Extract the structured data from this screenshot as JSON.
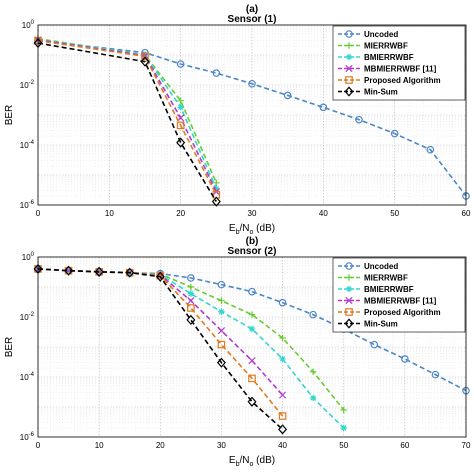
{
  "chart_data": [
    {
      "type": "line",
      "panel_label": "(a)",
      "title": "Sensor (1)",
      "xlabel": "E_b/N_o (dB)",
      "ylabel": "BER",
      "yscale": "log",
      "xlim": [
        0,
        60
      ],
      "ylim": [
        1e-06,
        1
      ],
      "xticks": [
        "0",
        "10",
        "20",
        "30",
        "40",
        "50",
        "60"
      ],
      "yticks": [
        "10^0",
        "10^-2",
        "10^-4",
        "10^-6"
      ],
      "grid": true,
      "legend_position": "top-right",
      "series": [
        {
          "name": "Uncoded",
          "color": "#4a86c8",
          "marker": "circle",
          "x": [
            0,
            15,
            20,
            25,
            30,
            35,
            40,
            45,
            50,
            55,
            60
          ],
          "y": [
            0.3,
            0.12,
            0.05,
            0.025,
            0.011,
            0.0045,
            0.0018,
            0.0007,
            0.00024,
            7e-05,
            2e-06
          ]
        },
        {
          "name": "MIERRWBF",
          "color": "#66cc33",
          "marker": "plus",
          "x": [
            0,
            15,
            20,
            25
          ],
          "y": [
            0.35,
            0.1,
            0.003,
            5.5e-06
          ]
        },
        {
          "name": "BMIERRWBF",
          "color": "#33d6cc",
          "marker": "star",
          "x": [
            0,
            15,
            20,
            25
          ],
          "y": [
            0.33,
            0.1,
            0.0018,
            3.5e-06
          ]
        },
        {
          "name": "MBMIERRWBF [11]",
          "color": "#b03ad0",
          "marker": "x",
          "x": [
            0,
            15,
            20,
            25
          ],
          "y": [
            0.32,
            0.095,
            0.0008,
            2.8e-06
          ]
        },
        {
          "name": "Proposed Algorithm",
          "color": "#e07a20",
          "marker": "square",
          "x": [
            0,
            15,
            20,
            25
          ],
          "y": [
            0.3,
            0.09,
            0.00045,
            2.2e-06
          ]
        },
        {
          "name": "Min-Sum",
          "color": "#000000",
          "marker": "diamond",
          "x": [
            0,
            15,
            20,
            25
          ],
          "y": [
            0.25,
            0.06,
            0.00012,
            1.3e-06
          ]
        }
      ]
    },
    {
      "type": "line",
      "panel_label": "(b)",
      "title": "Sensor (2)",
      "xlabel": "E_b/N_o (dB)",
      "ylabel": "BER",
      "yscale": "log",
      "xlim": [
        0,
        70
      ],
      "ylim": [
        1e-06,
        1
      ],
      "xticks": [
        "0",
        "10",
        "20",
        "30",
        "40",
        "50",
        "60",
        "70"
      ],
      "yticks": [
        "10^0",
        "10^-2",
        "10^-4",
        "10^-6"
      ],
      "grid": true,
      "legend_position": "top-right",
      "series": [
        {
          "name": "Uncoded",
          "color": "#4a86c8",
          "marker": "circle",
          "x": [
            0,
            5,
            10,
            15,
            20,
            25,
            30,
            35,
            40,
            45,
            50,
            55,
            60,
            65,
            70
          ],
          "y": [
            0.4,
            0.35,
            0.33,
            0.3,
            0.28,
            0.2,
            0.12,
            0.07,
            0.03,
            0.012,
            0.004,
            0.0012,
            0.0004,
            0.00012,
            3.5e-05
          ]
        },
        {
          "name": "MIERRWBF",
          "color": "#66cc33",
          "marker": "plus",
          "x": [
            0,
            5,
            10,
            15,
            20,
            25,
            30,
            35,
            40,
            45,
            50
          ],
          "y": [
            0.4,
            0.35,
            0.32,
            0.3,
            0.27,
            0.1,
            0.035,
            0.012,
            0.002,
            0.00015,
            8e-06
          ]
        },
        {
          "name": "BMIERRWBF",
          "color": "#33d6cc",
          "marker": "star",
          "x": [
            0,
            5,
            10,
            15,
            20,
            25,
            30,
            35,
            40,
            45,
            50
          ],
          "y": [
            0.4,
            0.35,
            0.32,
            0.3,
            0.26,
            0.06,
            0.015,
            0.004,
            0.0004,
            2e-05,
            2e-06
          ]
        },
        {
          "name": "MBMIERRWBF [11]",
          "color": "#b03ad0",
          "marker": "x",
          "x": [
            0,
            5,
            10,
            15,
            20,
            25,
            30,
            35,
            40
          ],
          "y": [
            0.4,
            0.35,
            0.32,
            0.3,
            0.25,
            0.035,
            0.0035,
            0.00035,
            2.5e-05
          ]
        },
        {
          "name": "Proposed Algorithm",
          "color": "#e07a20",
          "marker": "square",
          "x": [
            0,
            5,
            10,
            15,
            20,
            25,
            30,
            35,
            40
          ],
          "y": [
            0.4,
            0.35,
            0.32,
            0.3,
            0.24,
            0.02,
            0.0012,
            9e-05,
            5e-06
          ]
        },
        {
          "name": "Min-Sum",
          "color": "#000000",
          "marker": "diamond",
          "x": [
            0,
            5,
            10,
            15,
            20,
            25,
            30,
            35,
            40
          ],
          "y": [
            0.4,
            0.35,
            0.32,
            0.3,
            0.22,
            0.008,
            0.0003,
            1.5e-05,
            1.8e-06
          ]
        }
      ]
    }
  ]
}
